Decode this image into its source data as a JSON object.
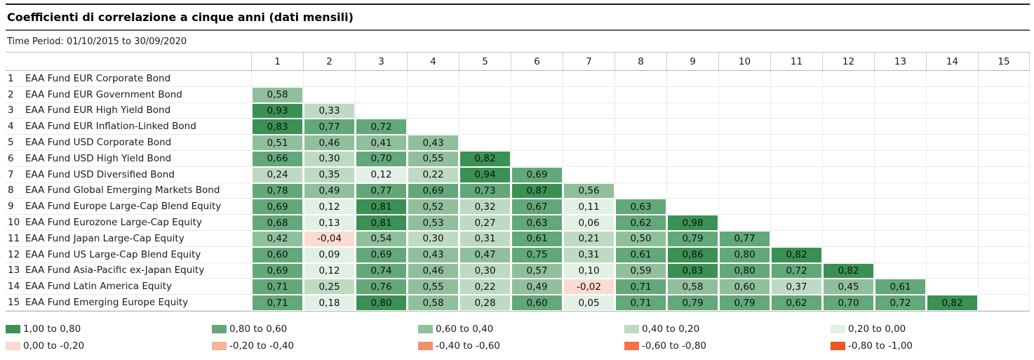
{
  "page": {
    "title": "Coefficienti di correlazione a cinque anni (dati mensili)",
    "time_period": "Time Period: 01/10/2015 to 30/09/2020"
  },
  "chart_data": {
    "type": "heatmap",
    "title": "Coefficienti di correlazione a cinque anni (dati mensili)",
    "subtitle": "Time Period: 01/10/2015 to 30/09/2020",
    "layout": "lower-triangular correlation matrix, 15x15, grid on, legend below",
    "column_headers": [
      "1",
      "2",
      "3",
      "4",
      "5",
      "6",
      "7",
      "8",
      "9",
      "10",
      "11",
      "12",
      "13",
      "14",
      "15"
    ],
    "band_colors": {
      "1,00 to 0,80": "#3a9153",
      "0,80 to 0,60": "#63a878",
      "0,60 to 0,40": "#90bf9c",
      "0,40 to 0,20": "#bedac3",
      "0,20 to 0,00": "#e3f0e5",
      "0,00 to -0,20": "#fcdbd0",
      "-0,20 to -0,40": "#f9b29b",
      "-0,40 to -0,60": "#f78f6a",
      "-0,60 to -0,80": "#f4714a",
      "-0,80 to -1,00": "#f0541f"
    },
    "rows": [
      {
        "index": "1",
        "label": "EAA Fund EUR Corporate Bond",
        "cells": []
      },
      {
        "index": "2",
        "label": "EAA Fund EUR Government Bond",
        "cells": [
          {
            "value": "0,58",
            "band": "0,60 to 0,40"
          }
        ]
      },
      {
        "index": "3",
        "label": "EAA Fund EUR High Yield Bond",
        "cells": [
          {
            "value": "0,93",
            "band": "1,00 to 0,80"
          },
          {
            "value": "0,33",
            "band": "0,40 to 0,20"
          }
        ]
      },
      {
        "index": "4",
        "label": "EAA Fund EUR Inflation-Linked Bond",
        "cells": [
          {
            "value": "0,83",
            "band": "1,00 to 0,80"
          },
          {
            "value": "0,77",
            "band": "0,80 to 0,60"
          },
          {
            "value": "0,72",
            "band": "0,80 to 0,60"
          }
        ]
      },
      {
        "index": "5",
        "label": "EAA Fund USD Corporate Bond",
        "cells": [
          {
            "value": "0,51",
            "band": "0,60 to 0,40"
          },
          {
            "value": "0,46",
            "band": "0,60 to 0,40"
          },
          {
            "value": "0,41",
            "band": "0,60 to 0,40"
          },
          {
            "value": "0,43",
            "band": "0,60 to 0,40"
          }
        ]
      },
      {
        "index": "6",
        "label": "EAA Fund USD High Yield Bond",
        "cells": [
          {
            "value": "0,66",
            "band": "0,80 to 0,60"
          },
          {
            "value": "0,30",
            "band": "0,40 to 0,20"
          },
          {
            "value": "0,70",
            "band": "0,80 to 0,60"
          },
          {
            "value": "0,55",
            "band": "0,60 to 0,40"
          },
          {
            "value": "0,82",
            "band": "1,00 to 0,80"
          }
        ]
      },
      {
        "index": "7",
        "label": "EAA Fund USD Diversified Bond",
        "cells": [
          {
            "value": "0,24",
            "band": "0,40 to 0,20"
          },
          {
            "value": "0,35",
            "band": "0,40 to 0,20"
          },
          {
            "value": "0,12",
            "band": "0,20 to 0,00"
          },
          {
            "value": "0,22",
            "band": "0,40 to 0,20"
          },
          {
            "value": "0,94",
            "band": "1,00 to 0,80"
          },
          {
            "value": "0,69",
            "band": "0,80 to 0,60"
          }
        ]
      },
      {
        "index": "8",
        "label": "EAA Fund Global Emerging Markets Bond",
        "cells": [
          {
            "value": "0,78",
            "band": "0,80 to 0,60"
          },
          {
            "value": "0,49",
            "band": "0,60 to 0,40"
          },
          {
            "value": "0,77",
            "band": "0,80 to 0,60"
          },
          {
            "value": "0,69",
            "band": "0,80 to 0,60"
          },
          {
            "value": "0,73",
            "band": "0,80 to 0,60"
          },
          {
            "value": "0,87",
            "band": "1,00 to 0,80"
          },
          {
            "value": "0,56",
            "band": "0,60 to 0,40"
          }
        ]
      },
      {
        "index": "9",
        "label": "EAA Fund Europe Large-Cap Blend Equity",
        "cells": [
          {
            "value": "0,69",
            "band": "0,80 to 0,60"
          },
          {
            "value": "0,12",
            "band": "0,20 to 0,00"
          },
          {
            "value": "0,81",
            "band": "1,00 to 0,80"
          },
          {
            "value": "0,52",
            "band": "0,60 to 0,40"
          },
          {
            "value": "0,32",
            "band": "0,40 to 0,20"
          },
          {
            "value": "0,67",
            "band": "0,80 to 0,60"
          },
          {
            "value": "0,11",
            "band": "0,20 to 0,00"
          },
          {
            "value": "0,63",
            "band": "0,80 to 0,60"
          }
        ]
      },
      {
        "index": "10",
        "label": "EAA Fund Eurozone Large-Cap Equity",
        "cells": [
          {
            "value": "0,68",
            "band": "0,80 to 0,60"
          },
          {
            "value": "0,13",
            "band": "0,20 to 0,00"
          },
          {
            "value": "0,81",
            "band": "1,00 to 0,80"
          },
          {
            "value": "0,53",
            "band": "0,60 to 0,40"
          },
          {
            "value": "0,27",
            "band": "0,40 to 0,20"
          },
          {
            "value": "0,63",
            "band": "0,80 to 0,60"
          },
          {
            "value": "0,06",
            "band": "0,20 to 0,00"
          },
          {
            "value": "0,62",
            "band": "0,80 to 0,60"
          },
          {
            "value": "0,98",
            "band": "1,00 to 0,80"
          }
        ]
      },
      {
        "index": "11",
        "label": "EAA Fund Japan Large-Cap Equity",
        "cells": [
          {
            "value": "0,42",
            "band": "0,60 to 0,40"
          },
          {
            "value": "-0,04",
            "band": "0,00 to -0,20"
          },
          {
            "value": "0,54",
            "band": "0,60 to 0,40"
          },
          {
            "value": "0,30",
            "band": "0,40 to 0,20"
          },
          {
            "value": "0,31",
            "band": "0,40 to 0,20"
          },
          {
            "value": "0,61",
            "band": "0,80 to 0,60"
          },
          {
            "value": "0,21",
            "band": "0,40 to 0,20"
          },
          {
            "value": "0,50",
            "band": "0,60 to 0,40"
          },
          {
            "value": "0,79",
            "band": "0,80 to 0,60"
          },
          {
            "value": "0,77",
            "band": "0,80 to 0,60"
          }
        ]
      },
      {
        "index": "12",
        "label": "EAA Fund US Large-Cap Blend Equity",
        "cells": [
          {
            "value": "0,60",
            "band": "0,80 to 0,60"
          },
          {
            "value": "0,09",
            "band": "0,20 to 0,00"
          },
          {
            "value": "0,69",
            "band": "0,80 to 0,60"
          },
          {
            "value": "0,43",
            "band": "0,60 to 0,40"
          },
          {
            "value": "0,47",
            "band": "0,60 to 0,40"
          },
          {
            "value": "0,75",
            "band": "0,80 to 0,60"
          },
          {
            "value": "0,31",
            "band": "0,40 to 0,20"
          },
          {
            "value": "0,61",
            "band": "0,80 to 0,60"
          },
          {
            "value": "0,86",
            "band": "1,00 to 0,80"
          },
          {
            "value": "0,80",
            "band": "0,80 to 0,60"
          },
          {
            "value": "0,82",
            "band": "1,00 to 0,80"
          }
        ]
      },
      {
        "index": "13",
        "label": "EAA Fund Asia-Pacific ex-Japan Equity",
        "cells": [
          {
            "value": "0,69",
            "band": "0,80 to 0,60"
          },
          {
            "value": "0,12",
            "band": "0,20 to 0,00"
          },
          {
            "value": "0,74",
            "band": "0,80 to 0,60"
          },
          {
            "value": "0,46",
            "band": "0,60 to 0,40"
          },
          {
            "value": "0,30",
            "band": "0,40 to 0,20"
          },
          {
            "value": "0,57",
            "band": "0,60 to 0,40"
          },
          {
            "value": "0,10",
            "band": "0,20 to 0,00"
          },
          {
            "value": "0,59",
            "band": "0,60 to 0,40"
          },
          {
            "value": "0,83",
            "band": "1,00 to 0,80"
          },
          {
            "value": "0,80",
            "band": "0,80 to 0,60"
          },
          {
            "value": "0,72",
            "band": "0,80 to 0,60"
          },
          {
            "value": "0,82",
            "band": "1,00 to 0,80"
          }
        ]
      },
      {
        "index": "14",
        "label": "EAA Fund Latin America Equity",
        "cells": [
          {
            "value": "0,71",
            "band": "0,80 to 0,60"
          },
          {
            "value": "0,25",
            "band": "0,40 to 0,20"
          },
          {
            "value": "0,76",
            "band": "0,80 to 0,60"
          },
          {
            "value": "0,55",
            "band": "0,60 to 0,40"
          },
          {
            "value": "0,22",
            "band": "0,40 to 0,20"
          },
          {
            "value": "0,49",
            "band": "0,60 to 0,40"
          },
          {
            "value": "-0,02",
            "band": "0,00 to -0,20"
          },
          {
            "value": "0,71",
            "band": "0,80 to 0,60"
          },
          {
            "value": "0,58",
            "band": "0,60 to 0,40"
          },
          {
            "value": "0,60",
            "band": "0,60 to 0,40"
          },
          {
            "value": "0,37",
            "band": "0,40 to 0,20"
          },
          {
            "value": "0,45",
            "band": "0,60 to 0,40"
          },
          {
            "value": "0,61",
            "band": "0,80 to 0,60"
          }
        ]
      },
      {
        "index": "15",
        "label": "EAA Fund Emerging Europe Equity",
        "cells": [
          {
            "value": "0,71",
            "band": "0,80 to 0,60"
          },
          {
            "value": "0,18",
            "band": "0,20 to 0,00"
          },
          {
            "value": "0,80",
            "band": "1,00 to 0,80"
          },
          {
            "value": "0,58",
            "band": "0,60 to 0,40"
          },
          {
            "value": "0,28",
            "band": "0,40 to 0,20"
          },
          {
            "value": "0,60",
            "band": "0,80 to 0,60"
          },
          {
            "value": "0,05",
            "band": "0,20 to 0,00"
          },
          {
            "value": "0,71",
            "band": "0,80 to 0,60"
          },
          {
            "value": "0,79",
            "band": "0,80 to 0,60"
          },
          {
            "value": "0,79",
            "band": "0,80 to 0,60"
          },
          {
            "value": "0,62",
            "band": "0,80 to 0,60"
          },
          {
            "value": "0,70",
            "band": "0,80 to 0,60"
          },
          {
            "value": "0,72",
            "band": "0,80 to 0,60"
          },
          {
            "value": "0,82",
            "band": "1,00 to 0,80"
          }
        ]
      }
    ],
    "legend": [
      {
        "label": "1,00 to 0,80",
        "color": "#3a9153"
      },
      {
        "label": "0,80 to 0,60",
        "color": "#63a878"
      },
      {
        "label": "0,60 to 0,40",
        "color": "#90bf9c"
      },
      {
        "label": "0,40 to 0,20",
        "color": "#bedac3"
      },
      {
        "label": "0,20 to 0,00",
        "color": "#e3f0e5"
      },
      {
        "label": "0,00 to -0,20",
        "color": "#fcdbd0"
      },
      {
        "label": "-0,20 to -0,40",
        "color": "#f9b29b"
      },
      {
        "label": "-0,40 to -0,60",
        "color": "#f78f6a"
      },
      {
        "label": "-0,60 to -0,80",
        "color": "#f4714a"
      },
      {
        "label": "-0,80 to -1,00",
        "color": "#f0541f"
      }
    ]
  }
}
